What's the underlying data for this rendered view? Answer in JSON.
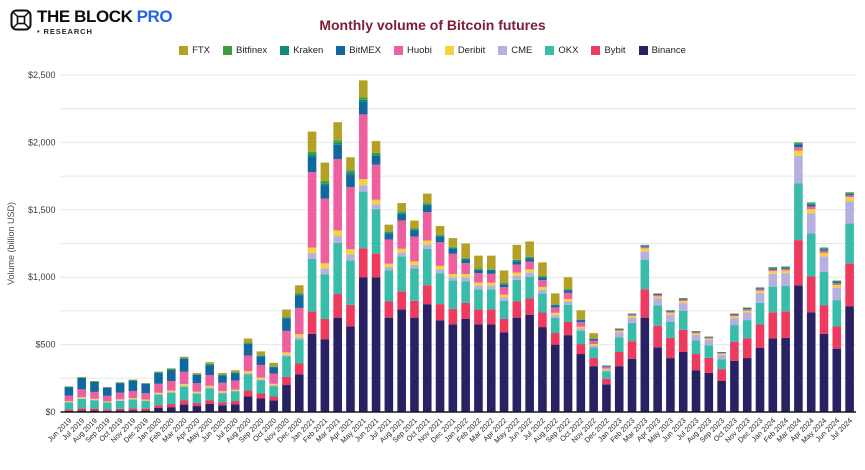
{
  "header": {
    "brand": "THE BLOCK",
    "brand_suffix": "PRO",
    "subtitle": "• RESEARCH"
  },
  "chart_data": {
    "type": "bar",
    "stacked": true,
    "title": "Monthly volume of Bitcoin futures",
    "xlabel": "",
    "ylabel": "Volume (billion USD)",
    "ylim": [
      0,
      2500
    ],
    "grid_step": 250,
    "label_step": 500,
    "ytick_labels": [
      "$0",
      "$500",
      "$1,000",
      "$1,500",
      "$2,000",
      "$2,500"
    ],
    "legend_position": "top-center",
    "grid": true,
    "categories": [
      "Jun 2019",
      "Jul 2019",
      "Aug 2019",
      "Sep 2019",
      "Oct 2019",
      "Nov 2019",
      "Dec 2019",
      "Jan 2020",
      "Feb 2020",
      "Mar 2020",
      "Apr 2020",
      "May 2020",
      "Jun 2020",
      "Jul 2020",
      "Aug 2020",
      "Sep 2020",
      "Oct 2020",
      "Nov 2020",
      "Dec 2020",
      "Jan 2021",
      "Feb 2021",
      "Mar 2021",
      "Apr 2021",
      "May 2021",
      "Jun 2021",
      "Jul 2021",
      "Aug 2021",
      "Sep 2021",
      "Oct 2021",
      "Nov 2021",
      "Dec 2021",
      "Jan 2022",
      "Feb 2022",
      "Mar 2022",
      "Apr 2022",
      "May 2022",
      "Jun 2022",
      "Jul 2022",
      "Aug 2022",
      "Sep 2022",
      "Oct 2022",
      "Nov 2022",
      "Dec 2022",
      "Jan 2023",
      "Feb 2023",
      "Mar 2023",
      "Apr 2023",
      "May 2023",
      "Jun 2023",
      "Jul 2023",
      "Aug 2023",
      "Sep 2023",
      "Oct 2023",
      "Nov 2023",
      "Dec 2023",
      "Jan 2024",
      "Feb 2024",
      "Mar 2024",
      "Apr 2024",
      "May 2024",
      "Jun 2024",
      "Jul 2024"
    ],
    "series": [
      {
        "name": "FTX",
        "color": "#b3a125",
        "values": [
          0,
          1,
          1,
          1,
          1,
          2,
          2,
          3,
          5,
          6,
          7,
          13,
          11,
          14,
          30,
          28,
          25,
          55,
          58,
          150,
          135,
          135,
          97,
          127,
          88,
          50,
          62,
          58,
          71,
          64,
          65,
          107,
          95,
          100,
          93,
          111,
          114,
          101,
          80,
          88,
          67,
          38,
          0,
          0,
          0,
          0,
          0,
          0,
          0,
          0,
          0,
          0,
          0,
          0,
          0,
          0,
          0,
          0,
          0,
          0,
          0,
          0
        ]
      },
      {
        "name": "Bitfinex",
        "color": "#3f9e3c",
        "values": [
          4,
          5,
          4,
          3,
          4,
          4,
          3,
          5,
          5,
          6,
          4,
          5,
          4,
          4,
          6,
          5,
          4,
          7,
          8,
          20,
          18,
          18,
          16,
          16,
          12,
          8,
          9,
          8,
          9,
          8,
          7,
          6,
          5,
          5,
          5,
          5,
          5,
          5,
          4,
          4,
          3,
          3,
          1,
          2,
          2,
          3,
          3,
          2,
          2,
          2,
          2,
          2,
          3,
          4,
          4,
          5,
          5,
          11,
          10,
          8,
          7,
          7
        ]
      },
      {
        "name": "Kraken",
        "color": "#128b7d",
        "values": [
          2,
          2,
          2,
          2,
          2,
          2,
          2,
          3,
          3,
          4,
          3,
          4,
          3,
          3,
          5,
          4,
          3,
          6,
          7,
          15,
          14,
          15,
          14,
          14,
          10,
          7,
          8,
          7,
          8,
          7,
          6,
          5,
          5,
          5,
          4,
          5,
          5,
          4,
          3,
          4,
          3,
          2,
          1,
          2,
          2,
          3,
          2,
          2,
          2,
          2,
          2,
          1,
          2,
          2,
          3,
          4,
          4,
          8,
          7,
          5,
          4,
          5
        ]
      },
      {
        "name": "BitMEX",
        "color": "#11689f",
        "values": [
          62,
          84,
          74,
          59,
          70,
          76,
          68,
          80,
          82,
          96,
          62,
          74,
          55,
          56,
          85,
          64,
          48,
          90,
          95,
          115,
          100,
          105,
          95,
          95,
          65,
          45,
          50,
          45,
          50,
          42,
          38,
          28,
          25,
          25,
          22,
          25,
          25,
          22,
          17,
          20,
          15,
          12,
          7,
          6,
          5,
          8,
          7,
          6,
          7,
          5,
          4,
          4,
          6,
          7,
          8,
          9,
          9,
          16,
          13,
          11,
          9,
          10
        ]
      },
      {
        "name": "Huobi",
        "color": "#ee5f9f",
        "values": [
          42,
          58,
          51,
          41,
          49,
          53,
          47,
          66,
          71,
          90,
          63,
          80,
          62,
          66,
          115,
          94,
          76,
          160,
          195,
          560,
          480,
          530,
          460,
          480,
          260,
          180,
          210,
          185,
          210,
          175,
          150,
          80,
          70,
          65,
          55,
          60,
          58,
          50,
          40,
          45,
          34,
          26,
          14,
          8,
          8,
          12,
          10,
          9,
          10,
          8,
          8,
          6,
          9,
          10,
          11,
          12,
          12,
          25,
          20,
          16,
          13,
          14
        ]
      },
      {
        "name": "Deribit",
        "color": "#f6d33c",
        "values": [
          6,
          8,
          7,
          6,
          7,
          7,
          7,
          9,
          10,
          12,
          9,
          11,
          9,
          9,
          15,
          13,
          10,
          18,
          22,
          40,
          38,
          42,
          38,
          45,
          35,
          25,
          28,
          26,
          30,
          26,
          24,
          24,
          22,
          22,
          20,
          24,
          24,
          21,
          17,
          19,
          14,
          11,
          8,
          12,
          13,
          22,
          16,
          14,
          16,
          11,
          10,
          8,
          13,
          14,
          17,
          20,
          20,
          40,
          30,
          25,
          20,
          30
        ]
      },
      {
        "name": "CME",
        "color": "#b6b0e1",
        "values": [
          4,
          5,
          4,
          3,
          4,
          4,
          4,
          6,
          7,
          9,
          6,
          7,
          6,
          6,
          10,
          8,
          7,
          12,
          15,
          45,
          45,
          50,
          45,
          48,
          35,
          25,
          28,
          26,
          32,
          28,
          25,
          30,
          28,
          28,
          26,
          30,
          30,
          27,
          21,
          24,
          18,
          15,
          12,
          35,
          40,
          62,
          52,
          52,
          58,
          42,
          39,
          32,
          52,
          56,
          72,
          95,
          95,
          205,
          150,
          115,
          92,
          165
        ]
      },
      {
        "name": "OKX",
        "color": "#3abcab",
        "values": [
          52,
          70,
          62,
          50,
          59,
          64,
          57,
          78,
          83,
          102,
          70,
          88,
          68,
          71,
          120,
          97,
          77,
          150,
          180,
          390,
          330,
          380,
          330,
          420,
          330,
          230,
          260,
          240,
          270,
          230,
          210,
          160,
          150,
          150,
          135,
          160,
          162,
          142,
          112,
          128,
          97,
          78,
          55,
          110,
          135,
          220,
          150,
          120,
          140,
          100,
          93,
          74,
          125,
          134,
          160,
          190,
          190,
          420,
          320,
          250,
          195,
          296
        ]
      },
      {
        "name": "Bybit",
        "color": "#ee3a5f",
        "values": [
          10,
          15,
          14,
          11,
          13,
          15,
          13,
          20,
          23,
          30,
          22,
          28,
          22,
          24,
          44,
          37,
          30,
          62,
          80,
          165,
          150,
          175,
          160,
          215,
          175,
          120,
          135,
          125,
          140,
          120,
          115,
          120,
          110,
          110,
          100,
          120,
          122,
          108,
          86,
          98,
          74,
          60,
          42,
          105,
          130,
          210,
          160,
          150,
          165,
          120,
          112,
          88,
          140,
          148,
          175,
          195,
          195,
          335,
          265,
          210,
          165,
          318
        ]
      },
      {
        "name": "Binance",
        "color": "#282264",
        "values": [
          8,
          12,
          11,
          9,
          11,
          13,
          12,
          30,
          36,
          55,
          44,
          60,
          50,
          57,
          115,
          100,
          85,
          200,
          280,
          580,
          540,
          700,
          635,
          1000,
          1000,
          700,
          760,
          700,
          800,
          680,
          650,
          690,
          650,
          650,
          590,
          700,
          720,
          630,
          500,
          570,
          430,
          340,
          205,
          340,
          395,
          700,
          480,
          400,
          445,
          310,
          290,
          230,
          380,
          400,
          475,
          545,
          550,
          940,
          740,
          580,
          470,
          785
        ]
      }
    ]
  }
}
